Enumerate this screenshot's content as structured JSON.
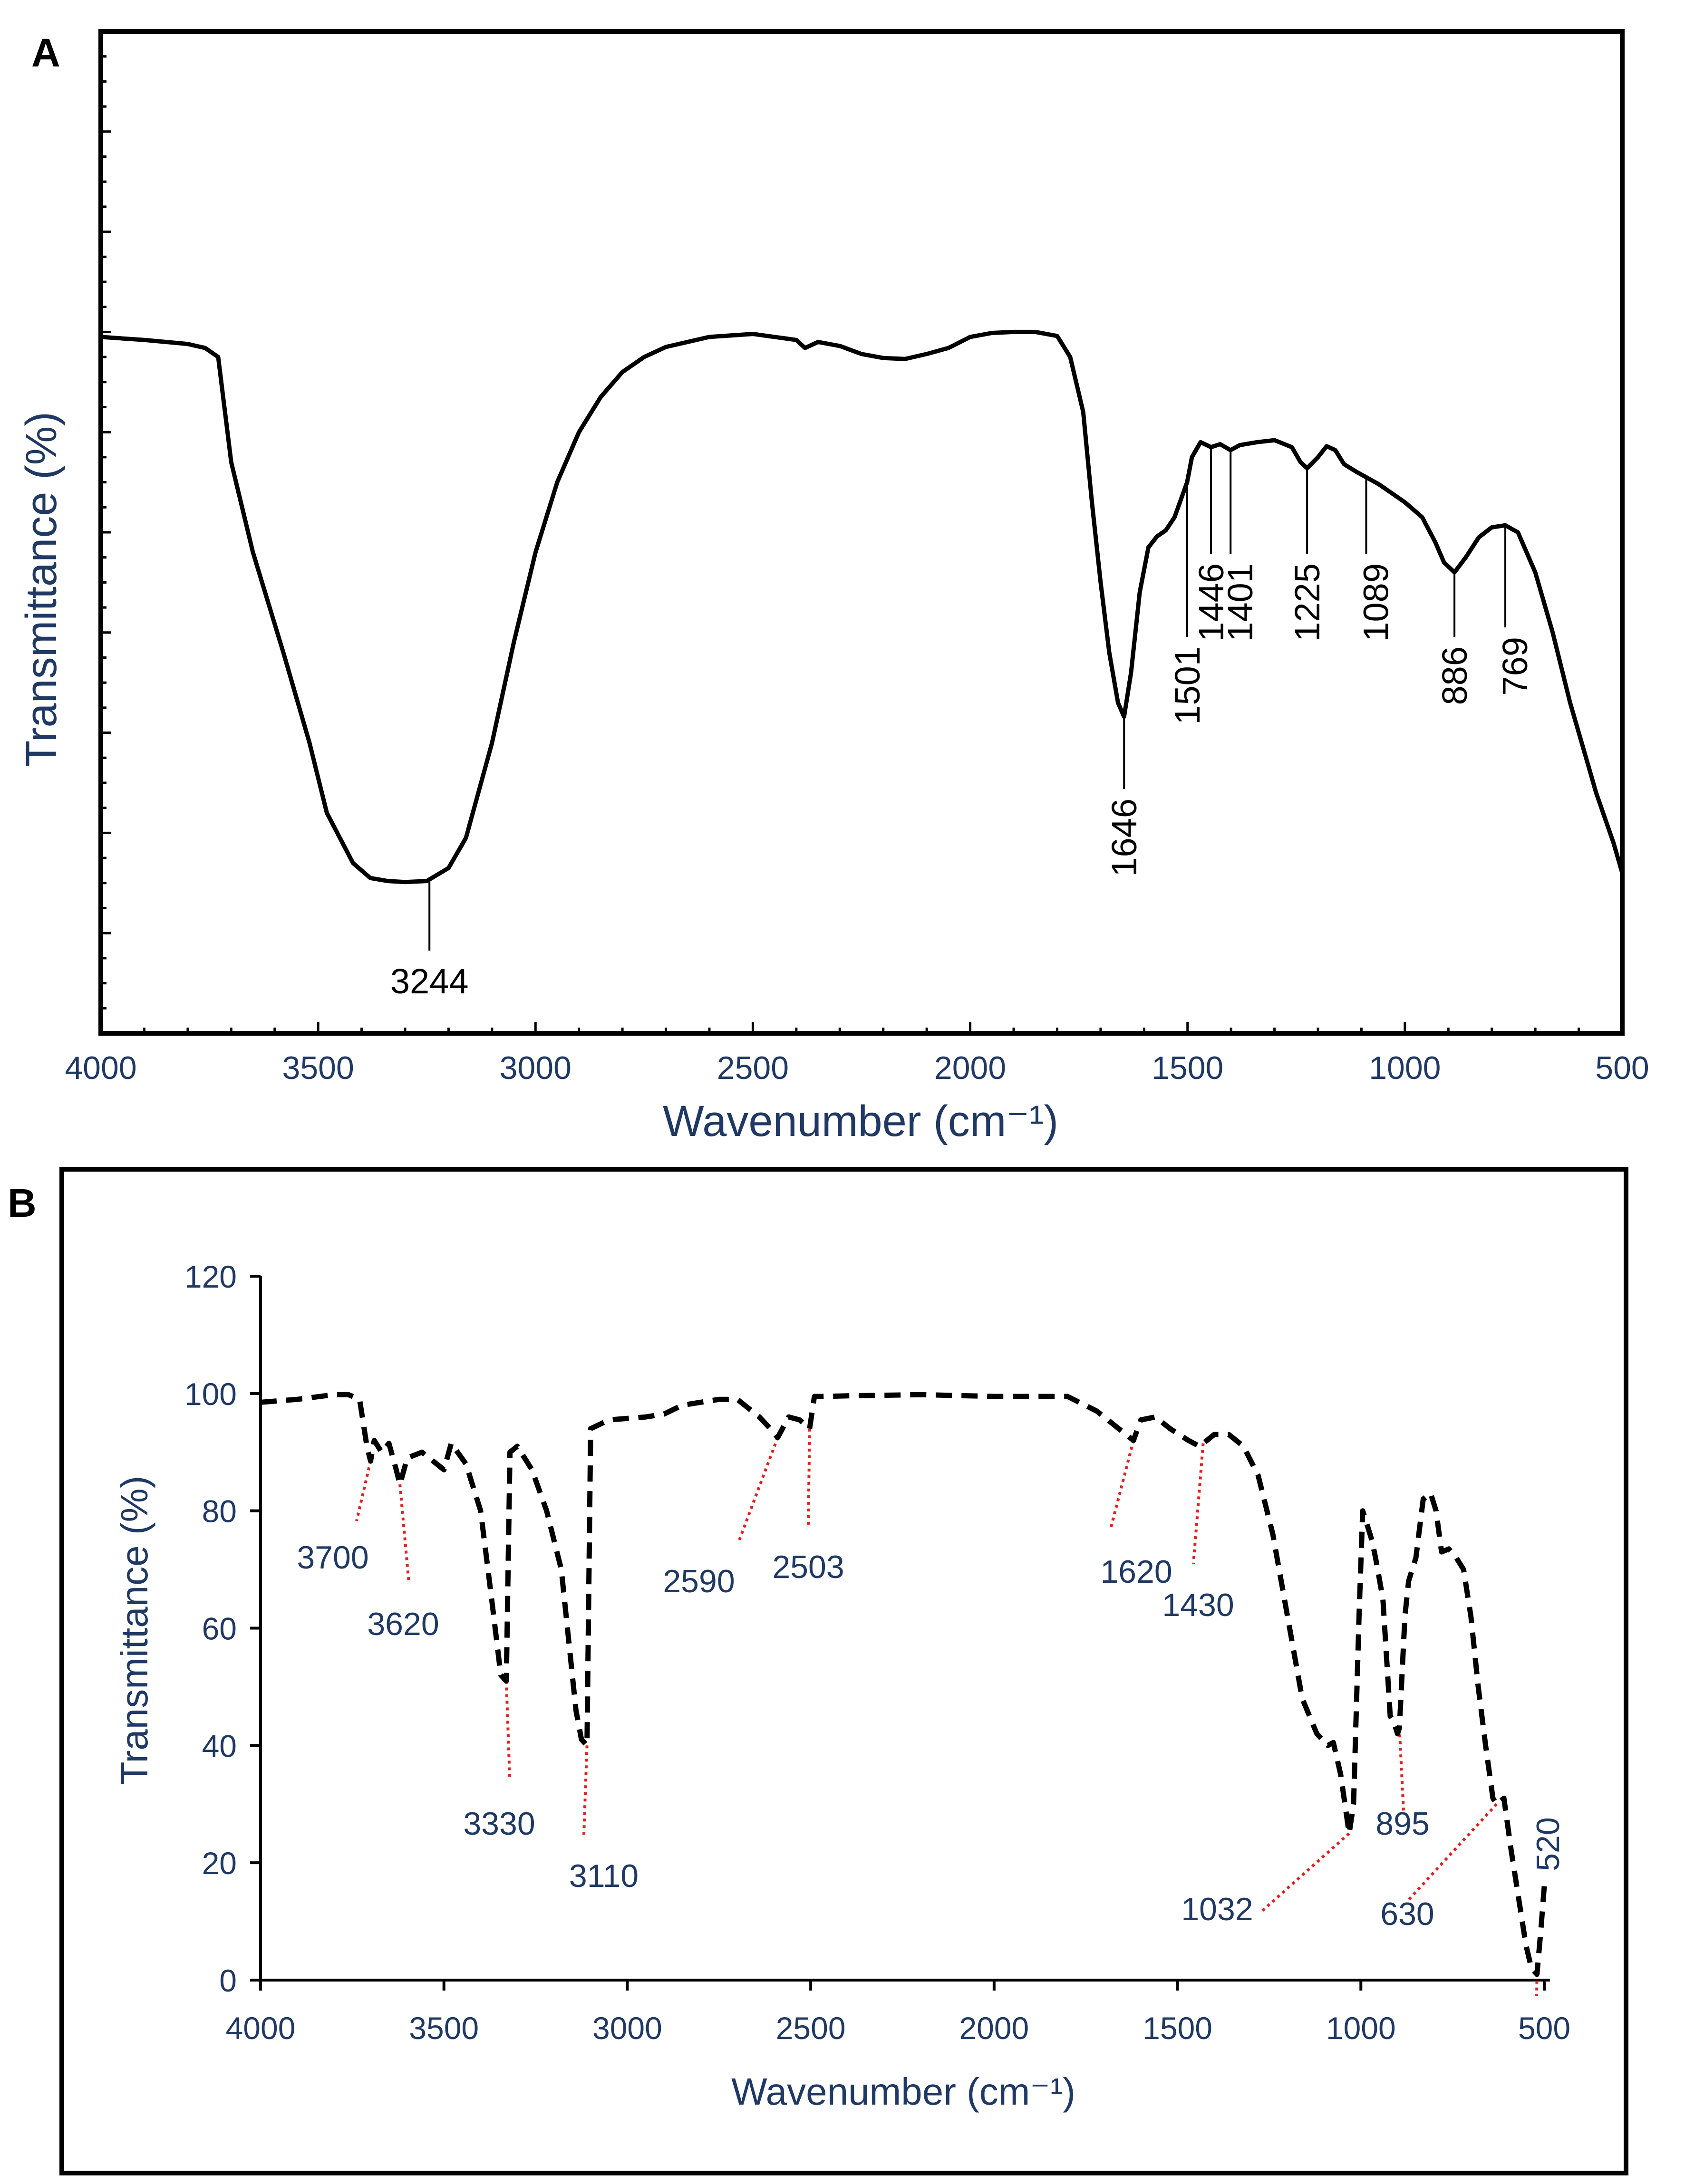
{
  "colors": {
    "axis_title": "#1f3864",
    "tick_label_b": "#1f3864",
    "peak_label_b": "#1f3864",
    "guide_line_b": "#e02020",
    "curve": "#000000",
    "frame": "#000000"
  },
  "chart_data": [
    {
      "panel": "A",
      "type": "line",
      "title": "",
      "xlabel": "Wavenumber (cm⁻¹)",
      "ylabel": "Transmittance (%)",
      "xlim": [
        4000,
        500
      ],
      "ylim": [
        0,
        100
      ],
      "y_ticks_labeled": false,
      "x_ticks": [
        4000,
        3500,
        3000,
        2500,
        2000,
        1500,
        1000,
        500
      ],
      "x_tick_labels": [
        "4000",
        "3500",
        "3000",
        "2500",
        "2000",
        "1500",
        "1000",
        "500"
      ],
      "series": [
        {
          "name": "spectrum",
          "style": "solid",
          "x": [
            4020,
            3900,
            3800,
            3760,
            3730,
            3700,
            3650,
            3580,
            3520,
            3480,
            3420,
            3380,
            3340,
            3300,
            3250,
            3200,
            3160,
            3100,
            3050,
            3000,
            2950,
            2900,
            2850,
            2800,
            2750,
            2700,
            2600,
            2500,
            2450,
            2400,
            2380,
            2350,
            2300,
            2250,
            2200,
            2150,
            2100,
            2050,
            2000,
            1950,
            1900,
            1850,
            1800,
            1770,
            1740,
            1720,
            1700,
            1680,
            1660,
            1646,
            1630,
            1610,
            1590,
            1570,
            1550,
            1530,
            1501,
            1490,
            1470,
            1446,
            1425,
            1401,
            1380,
            1340,
            1300,
            1260,
            1240,
            1225,
            1200,
            1180,
            1160,
            1140,
            1110,
            1089,
            1060,
            1000,
            960,
            930,
            910,
            886,
            860,
            830,
            800,
            769,
            740,
            700,
            660,
            620,
            580,
            560,
            520,
            500
          ],
          "y": [
            69.5,
            69.2,
            68.8,
            68.4,
            67.5,
            57.0,
            48.0,
            38.0,
            29.0,
            22.0,
            17.0,
            15.5,
            15.2,
            15.1,
            15.2,
            16.5,
            19.5,
            29.0,
            39.0,
            48.0,
            55.0,
            60.0,
            63.5,
            66.0,
            67.5,
            68.5,
            69.5,
            69.8,
            69.5,
            69.2,
            68.4,
            69.0,
            68.6,
            67.8,
            67.4,
            67.3,
            67.8,
            68.4,
            69.5,
            69.9,
            70.0,
            70.0,
            69.6,
            67.5,
            62.0,
            53.0,
            45.0,
            38.0,
            33.0,
            31.6,
            36.0,
            44.0,
            48.5,
            49.6,
            50.2,
            51.5,
            55.0,
            57.5,
            59.0,
            58.5,
            58.8,
            58.2,
            58.7,
            59.0,
            59.2,
            58.5,
            57.0,
            56.4,
            57.5,
            58.6,
            58.2,
            56.8,
            56.0,
            55.5,
            54.8,
            53.0,
            51.5,
            49.0,
            47.0,
            46.0,
            47.5,
            49.5,
            50.5,
            50.7,
            50.0,
            46.0,
            40.0,
            33.0,
            27.0,
            24.0,
            19.0,
            16.0
          ]
        }
      ],
      "annotations": [
        {
          "label": "3244",
          "x": 3244,
          "y": 15.1
        },
        {
          "label": "1646",
          "x": 1646,
          "y": 31.6
        },
        {
          "label": "1501",
          "x": 1501,
          "y": 55.0
        },
        {
          "label": "1446",
          "x": 1446,
          "y": 58.5
        },
        {
          "label": "1401",
          "x": 1401,
          "y": 58.2
        },
        {
          "label": "1225",
          "x": 1225,
          "y": 56.4
        },
        {
          "label": "1089",
          "x": 1089,
          "y": 55.5
        },
        {
          "label": "886",
          "x": 886,
          "y": 46.0
        },
        {
          "label": "769",
          "x": 769,
          "y": 50.7
        }
      ]
    },
    {
      "panel": "B",
      "type": "line",
      "title": "",
      "xlabel": "Wavenumber (cm⁻¹)",
      "ylabel": "Transmittance (%)",
      "xlim": [
        4000,
        500
      ],
      "ylim": [
        0,
        120
      ],
      "x_ticks": [
        4000,
        3500,
        3000,
        2500,
        2000,
        1500,
        1000,
        500
      ],
      "x_tick_labels": [
        "4000",
        "3500",
        "3000",
        "2500",
        "2000",
        "1500",
        "1000",
        "500"
      ],
      "y_ticks": [
        0,
        20,
        40,
        60,
        80,
        100,
        120
      ],
      "y_tick_labels": [
        "0",
        "20",
        "40",
        "60",
        "80",
        "100",
        "120"
      ],
      "series": [
        {
          "name": "spectrum",
          "style": "dashed",
          "x": [
            4000,
            3900,
            3800,
            3760,
            3730,
            3710,
            3700,
            3690,
            3670,
            3650,
            3630,
            3620,
            3600,
            3560,
            3520,
            3500,
            3480,
            3440,
            3400,
            3370,
            3345,
            3330,
            3320,
            3300,
            3260,
            3220,
            3180,
            3160,
            3140,
            3125,
            3110,
            3100,
            3050,
            2950,
            2900,
            2850,
            2750,
            2700,
            2640,
            2610,
            2590,
            2560,
            2530,
            2503,
            2490,
            2470,
            2400,
            2200,
            2000,
            1800,
            1720,
            1660,
            1640,
            1620,
            1600,
            1560,
            1520,
            1470,
            1440,
            1430,
            1400,
            1360,
            1320,
            1280,
            1240,
            1200,
            1160,
            1120,
            1090,
            1075,
            1055,
            1032,
            1020,
            1005,
            995,
            985,
            970,
            960,
            940,
            920,
            910,
            900,
            895,
            880,
            870,
            850,
            830,
            810,
            795,
            780,
            760,
            740,
            720,
            700,
            680,
            660,
            640,
            630,
            610,
            590,
            570,
            550,
            535,
            520,
            510,
            500
          ],
          "y": [
            98.5,
            99.0,
            99.8,
            99.8,
            99.0,
            91.0,
            88.5,
            92.0,
            90.0,
            91.5,
            87.0,
            84.5,
            89.0,
            90.0,
            88.0,
            87.0,
            91.5,
            88.0,
            80.0,
            65.0,
            52.0,
            51.0,
            90.0,
            91.0,
            87.0,
            80.0,
            70.0,
            58.0,
            46.0,
            41.0,
            40.0,
            94.0,
            95.5,
            96.0,
            96.5,
            98.0,
            99.0,
            99.0,
            96.0,
            94.0,
            92.5,
            96.0,
            95.5,
            94.0,
            99.5,
            99.5,
            99.6,
            99.8,
            99.5,
            99.5,
            97.0,
            94.0,
            93.0,
            92.0,
            95.5,
            96.0,
            94.0,
            92.0,
            91.0,
            91.5,
            93.0,
            93.0,
            91.0,
            86.0,
            76.0,
            62.0,
            48.0,
            42.0,
            40.0,
            40.5,
            35.0,
            25.0,
            30.0,
            62.0,
            80.0,
            78.0,
            75.0,
            72.0,
            65.0,
            45.0,
            44.0,
            42.0,
            43.0,
            62.0,
            68.0,
            72.0,
            82.0,
            83.0,
            80.0,
            73.0,
            73.5,
            72.0,
            70.0,
            62.0,
            50.0,
            40.0,
            31.0,
            30.0,
            31.0,
            22.0,
            14.0,
            6.0,
            2.0,
            1.0,
            8.0,
            16.0
          ]
        }
      ],
      "annotations": [
        {
          "label": "3700",
          "x": 3700,
          "y": 88.5
        },
        {
          "label": "3620",
          "x": 3620,
          "y": 84.5
        },
        {
          "label": "3330",
          "x": 3330,
          "y": 51.0
        },
        {
          "label": "3110",
          "x": 3110,
          "y": 40.0
        },
        {
          "label": "2590",
          "x": 2590,
          "y": 92.5
        },
        {
          "label": "2503",
          "x": 2503,
          "y": 94.0
        },
        {
          "label": "1620",
          "x": 1620,
          "y": 92.0
        },
        {
          "label": "1430",
          "x": 1430,
          "y": 91.5
        },
        {
          "label": "1032",
          "x": 1032,
          "y": 25.0
        },
        {
          "label": "895",
          "x": 895,
          "y": 43.0
        },
        {
          "label": "630",
          "x": 630,
          "y": 30.0
        },
        {
          "label": "520",
          "x": 520,
          "y": 1.0
        }
      ]
    }
  ]
}
